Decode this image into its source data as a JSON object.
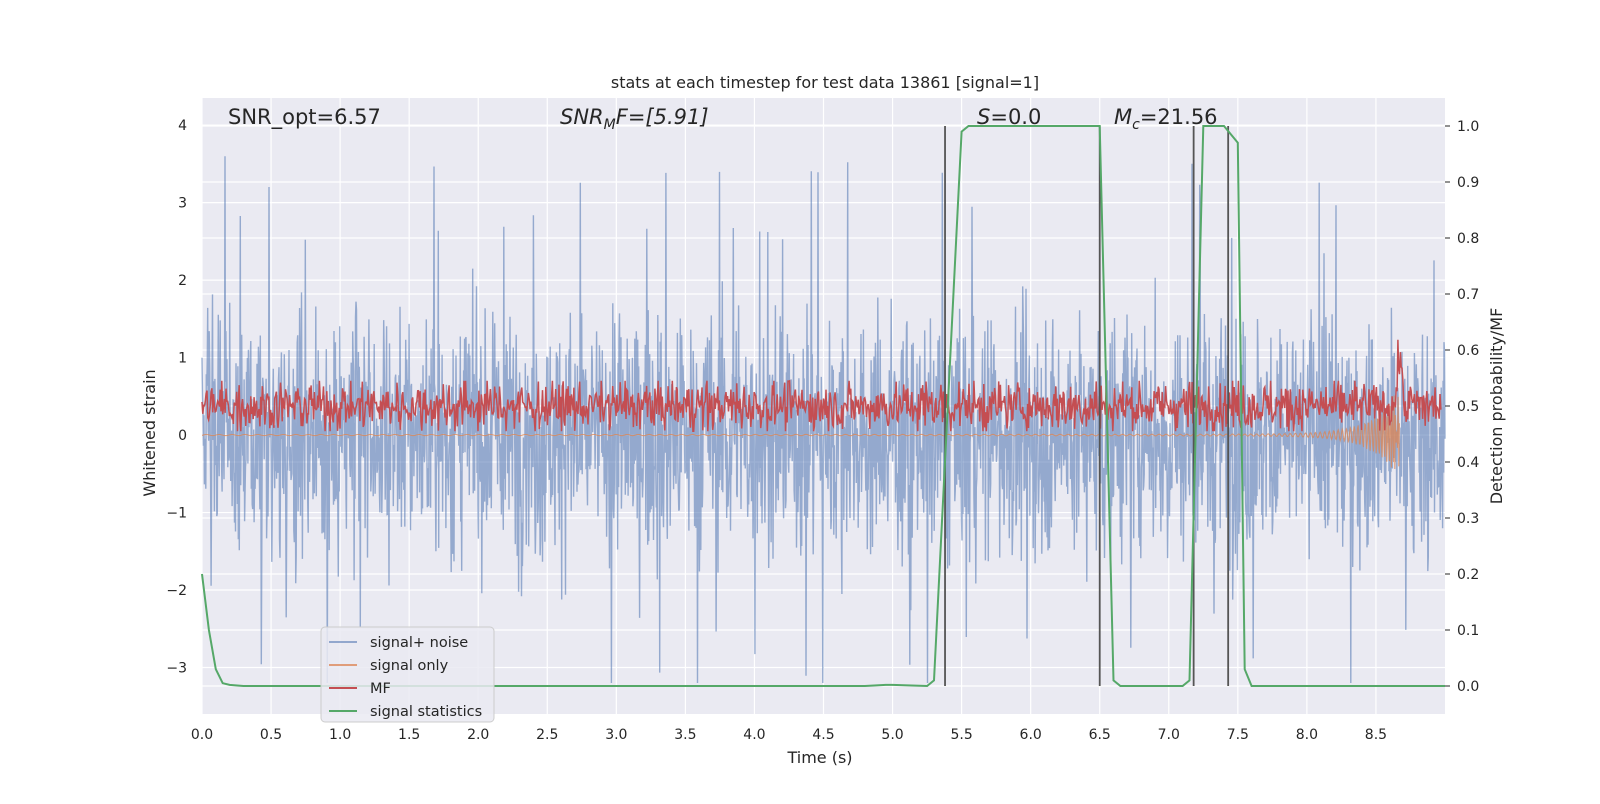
{
  "chart_data": {
    "type": "line",
    "title": "stats at each timestep for test data 13861 [signal=1]",
    "xlabel": "Time (s)",
    "ylabel_left": "Whitened strain",
    "ylabel_right": "Detection probability/MF",
    "xlim": [
      0.0,
      9.0
    ],
    "ylim_left": [
      -3.6,
      4.35
    ],
    "ylim_right": [
      -0.05,
      1.05
    ],
    "xticks": [
      "0.0",
      "0.5",
      "1.0",
      "1.5",
      "2.0",
      "2.5",
      "3.0",
      "3.5",
      "4.0",
      "4.5",
      "5.0",
      "5.5",
      "6.0",
      "6.5",
      "7.0",
      "7.5",
      "8.0",
      "8.5"
    ],
    "yticks_left": [
      "4",
      "3",
      "2",
      "1",
      "0",
      "−1",
      "−2",
      "−3"
    ],
    "yticks_right": [
      "1.0",
      "0.9",
      "0.8",
      "0.7",
      "0.6",
      "0.5",
      "0.4",
      "0.3",
      "0.2",
      "0.1",
      "0.0"
    ],
    "grid": true,
    "legend_placement": "lower-left",
    "background_color": "#eaeaf2",
    "annotations": {
      "snr_opt": "SNR_opt=6.57",
      "snr_mf_main": "SNR",
      "snr_mf_sub": "M",
      "snr_mf_rest": "F=[5.91]",
      "s_main": "S",
      "s_rest": "=0.0",
      "mc_main": "M",
      "mc_sub": "c",
      "mc_rest": "=21.56"
    },
    "series": [
      {
        "name": "signal+ noise",
        "axis": "left",
        "color": "#4c72b0",
        "description": "whitened noisy strain, approx. range -3.2 to 4.0"
      },
      {
        "name": "signal only",
        "axis": "left",
        "color": "#dd8452",
        "description": "chirp waveform near zero, growing to about ±1 near 8.67 s"
      },
      {
        "name": "MF",
        "axis": "right",
        "color": "#c44e52",
        "description": "matched-filter output, approx. 0.45-0.55, peak 0.6 at 8.67 s"
      },
      {
        "name": "signal statistics",
        "axis": "right",
        "color": "#55a868",
        "x": [
          0.0,
          0.05,
          0.1,
          0.15,
          0.2,
          0.3,
          4.8,
          4.95,
          5.0,
          5.25,
          5.3,
          5.5,
          5.55,
          6.45,
          6.5,
          6.6,
          6.65,
          6.7,
          7.1,
          7.15,
          7.25,
          7.35,
          7.4,
          7.5,
          7.55,
          7.6,
          9.0
        ],
        "values": [
          0.2,
          0.1,
          0.03,
          0.005,
          0.002,
          0.0,
          0.0,
          0.002,
          0.002,
          0.0,
          0.01,
          0.99,
          1.0,
          1.0,
          1.0,
          0.01,
          0.0,
          0.0,
          0.0,
          0.01,
          1.0,
          1.0,
          1.0,
          0.97,
          0.03,
          0.0,
          0.0
        ]
      }
    ],
    "vertical_markers_s": [
      5.38,
      6.5,
      7.18,
      7.43
    ]
  }
}
